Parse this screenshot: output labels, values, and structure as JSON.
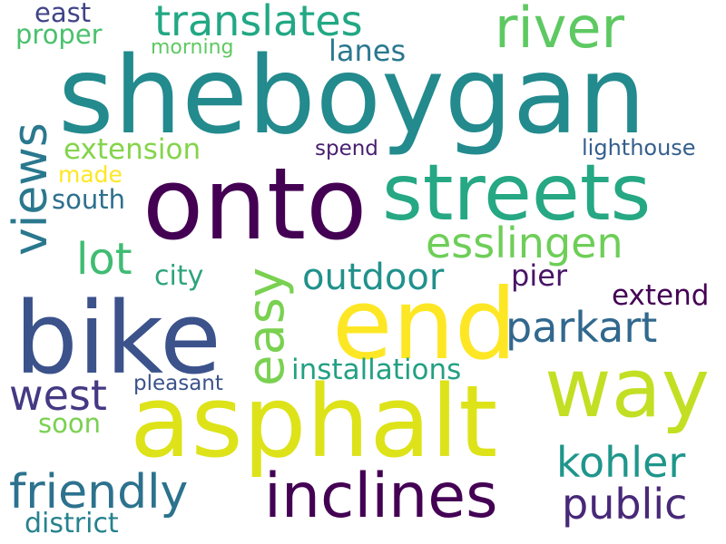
{
  "words": [
    {
      "id": "sheboygan",
      "text": "sheboygan",
      "color": "#238a8d"
    },
    {
      "id": "onto",
      "text": "onto",
      "color": "#440154"
    },
    {
      "id": "streets",
      "text": "streets",
      "color": "#25a883"
    },
    {
      "id": "bike",
      "text": "bike",
      "color": "#3b528b"
    },
    {
      "id": "end",
      "text": "end",
      "color": "#fde725"
    },
    {
      "id": "asphalt",
      "text": "asphalt",
      "color": "#dde318"
    },
    {
      "id": "way",
      "text": "way",
      "color": "#c2df23"
    },
    {
      "id": "inclines",
      "text": "inclines",
      "color": "#440154"
    },
    {
      "id": "river",
      "text": "river",
      "color": "#5ec962"
    },
    {
      "id": "translates",
      "text": "translates",
      "color": "#22a884"
    },
    {
      "id": "views",
      "text": "views",
      "color": "#2a788e"
    },
    {
      "id": "easy",
      "text": "easy",
      "color": "#7ad151"
    },
    {
      "id": "esslingen",
      "text": "esslingen",
      "color": "#6ece58"
    },
    {
      "id": "outdoor",
      "text": "outdoor",
      "color": "#21918c"
    },
    {
      "id": "parkart",
      "text": "parkart",
      "color": "#31688e"
    },
    {
      "id": "lot",
      "text": "lot",
      "color": "#3fbc73"
    },
    {
      "id": "west",
      "text": "west",
      "color": "#443983"
    },
    {
      "id": "friendly",
      "text": "friendly",
      "color": "#2c728e"
    },
    {
      "id": "kohler",
      "text": "kohler",
      "color": "#1f968b"
    },
    {
      "id": "public",
      "text": "public",
      "color": "#482878"
    },
    {
      "id": "installations",
      "text": "installations",
      "color": "#23a083"
    },
    {
      "id": "extension",
      "text": "extension",
      "color": "#84d44b"
    },
    {
      "id": "lanes",
      "text": "lanes",
      "color": "#2a788e"
    },
    {
      "id": "east",
      "text": "east",
      "color": "#414487"
    },
    {
      "id": "proper",
      "text": "proper",
      "color": "#4ac16d"
    },
    {
      "id": "morning",
      "text": "morning",
      "color": "#5ec962"
    },
    {
      "id": "spend",
      "text": "spend",
      "color": "#481f70"
    },
    {
      "id": "lighthouse",
      "text": "lighthouse",
      "color": "#355f8d"
    },
    {
      "id": "made",
      "text": "made",
      "color": "#fde725"
    },
    {
      "id": "south",
      "text": "south",
      "color": "#2d708e"
    },
    {
      "id": "city",
      "text": "city",
      "color": "#2ea47b"
    },
    {
      "id": "pier",
      "text": "pier",
      "color": "#481467"
    },
    {
      "id": "extend",
      "text": "extend",
      "color": "#440154"
    },
    {
      "id": "pleasant",
      "text": "pleasant",
      "color": "#3b528b"
    },
    {
      "id": "soon",
      "text": "soon",
      "color": "#7ad151"
    },
    {
      "id": "district",
      "text": "district",
      "color": "#26828e"
    }
  ]
}
